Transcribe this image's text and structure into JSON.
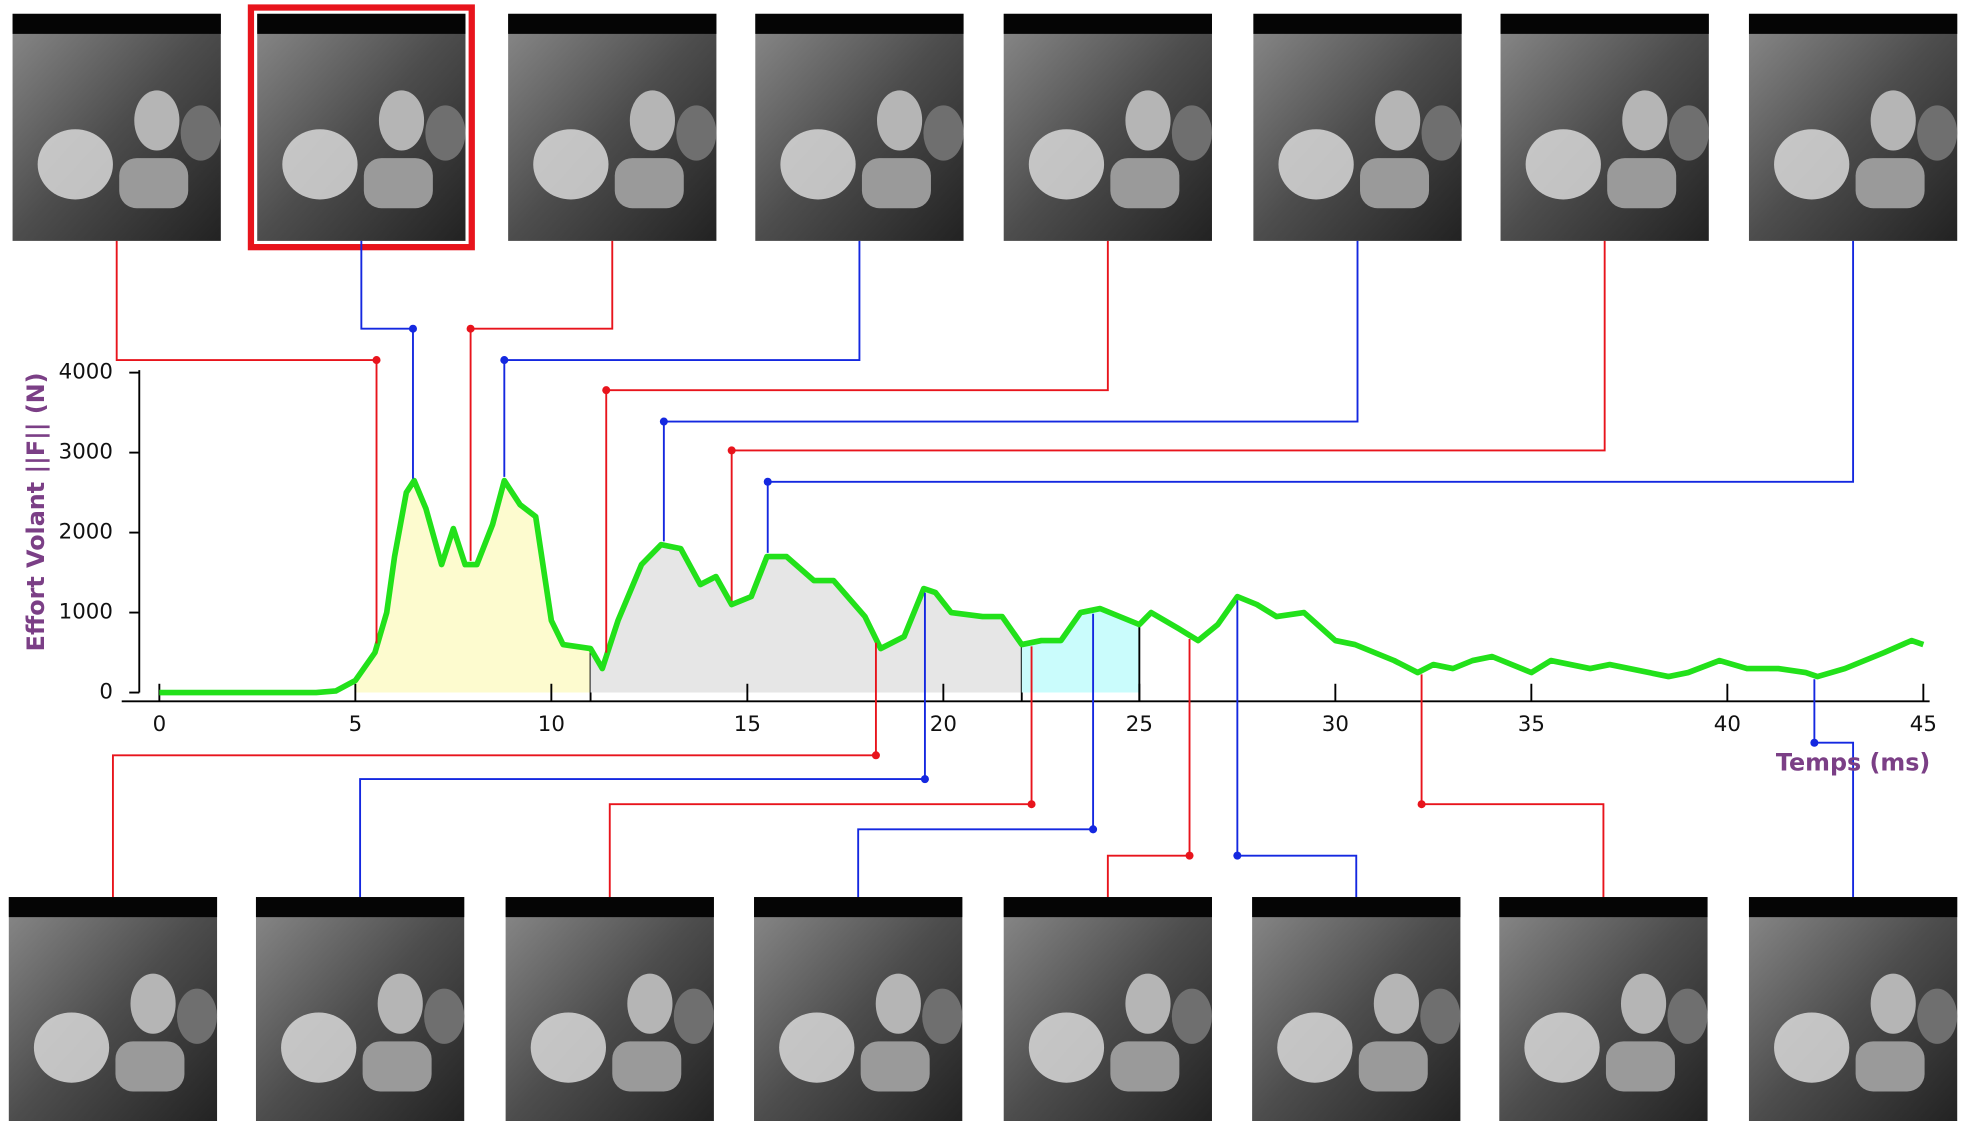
{
  "chart_data": {
    "type": "line",
    "x_label": "Temps (ms)",
    "y_label": "Effort Volant ||F|| (N)",
    "xlim": [
      -1,
      45
    ],
    "ylim": [
      0,
      4000
    ],
    "xticks": [
      0,
      5,
      10,
      15,
      20,
      25,
      30,
      35,
      40,
      45
    ],
    "yticks": [
      0,
      1000,
      2000,
      3000,
      4000
    ],
    "x": [
      0,
      4,
      4.5,
      5,
      5.5,
      5.8,
      6,
      6.3,
      6.5,
      6.8,
      7.2,
      7.5,
      7.8,
      8.1,
      8.5,
      8.8,
      9.2,
      9.6,
      10,
      10.3,
      11,
      11.3,
      11.7,
      12.3,
      12.8,
      13.3,
      13.8,
      14.2,
      14.6,
      15.1,
      15.5,
      16,
      16.7,
      17.2,
      18,
      18.4,
      19,
      19.5,
      19.8,
      20.2,
      21,
      21.5,
      22,
      22.5,
      23,
      23.5,
      24,
      24.5,
      25,
      25.3,
      26,
      26.5,
      27,
      27.5,
      28,
      28.5,
      29.2,
      30,
      30.5,
      31.5,
      32.1,
      32.5,
      33,
      33.5,
      34,
      35,
      35.5,
      36.5,
      37,
      38.5,
      39,
      39.8,
      40.5,
      41.3,
      42,
      42.3,
      43,
      44,
      44.7,
      45
    ],
    "series": [
      {
        "color": "#22e11a",
        "values": [
          0,
          0,
          20,
          150,
          500,
          1000,
          1700,
          2500,
          2650,
          2300,
          1600,
          2050,
          1600,
          1600,
          2100,
          2650,
          2350,
          2200,
          900,
          600,
          550,
          300,
          900,
          1600,
          1850,
          1800,
          1350,
          1450,
          1100,
          1200,
          1700,
          1700,
          1400,
          1400,
          950,
          550,
          700,
          1300,
          1250,
          1000,
          950,
          950,
          600,
          650,
          650,
          1000,
          1050,
          950,
          850,
          1000,
          800,
          650,
          850,
          1200,
          1100,
          950,
          1000,
          650,
          600,
          400,
          250,
          350,
          300,
          400,
          450,
          250,
          400,
          300,
          350,
          200,
          250,
          400,
          300,
          300,
          250,
          200,
          300,
          500,
          650,
          600
        ]
      }
    ],
    "regions": [
      {
        "start": 5,
        "end": 11,
        "color": "#fdfbcf"
      },
      {
        "start": 11,
        "end": 22,
        "color": "#e6e6e6"
      },
      {
        "start": 22,
        "end": 25,
        "color": "#cafcfc"
      }
    ],
    "markers": [
      {
        "time": 5.54,
        "color": "#e8141c"
      },
      {
        "time": 6.47,
        "color": "#1428e0"
      },
      {
        "time": 7.94,
        "color": "#e8141c"
      },
      {
        "time": 8.8,
        "color": "#1428e0"
      },
      {
        "time": 11.4,
        "color": "#e8141c"
      },
      {
        "time": 12.87,
        "color": "#1428e0"
      },
      {
        "time": 14.6,
        "color": "#e8141c"
      },
      {
        "time": 15.52,
        "color": "#1428e0"
      },
      {
        "time": 18.28,
        "color": "#e8141c"
      },
      {
        "time": 19.53,
        "color": "#1428e0"
      },
      {
        "time": 22.25,
        "color": "#e8141c"
      },
      {
        "time": 23.82,
        "color": "#1428e0"
      },
      {
        "time": 26.28,
        "color": "#e8141c"
      },
      {
        "time": 27.5,
        "color": "#1428e0"
      },
      {
        "time": 32.2,
        "color": "#e8141c"
      },
      {
        "time": 42.22,
        "color": "#1428e0"
      }
    ],
    "label_color": "#7b3f86"
  }
}
